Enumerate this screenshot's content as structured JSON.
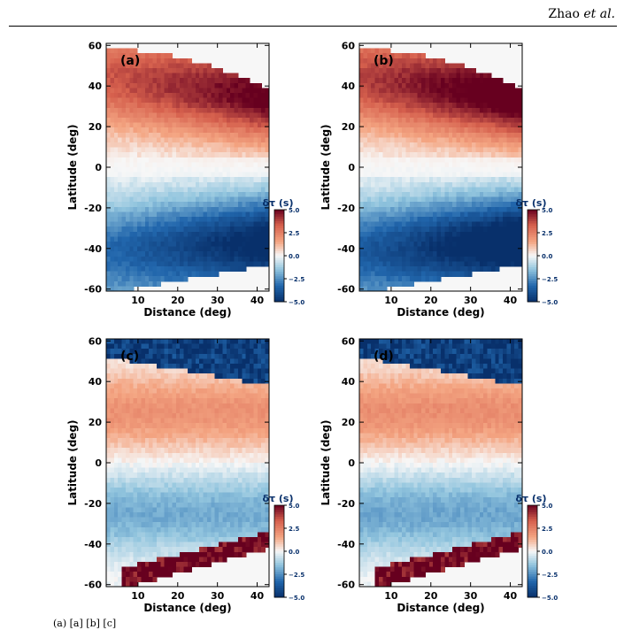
{
  "header": {
    "author": "Zhao",
    "etal": "et al."
  },
  "caption_fragment": "(a)                                  [a]  [b]                            [c]",
  "colors": {
    "dark_blue": "#08306b",
    "mid_blue": "#2166ac",
    "light_blue": "#92c5de",
    "white": "#f7f7f7",
    "light_red": "#f4a582",
    "mid_red": "#d6604d",
    "dark_red": "#67001f"
  },
  "panels": [
    {
      "label": "(a)",
      "xlabel": "Distance (deg)",
      "ylabel": "Latitude (deg)",
      "variant": "a"
    },
    {
      "label": "(b)",
      "xlabel": "Distance (deg)",
      "ylabel": "Latitude (deg)",
      "variant": "b"
    },
    {
      "label": "(c)",
      "xlabel": "Distance (deg)",
      "ylabel": "Latitude (deg)",
      "variant": "c"
    },
    {
      "label": "(d)",
      "xlabel": "Distance (deg)",
      "ylabel": "Latitude (deg)",
      "variant": "d"
    }
  ],
  "colorbar": {
    "title": "δτ (s)",
    "ticks": [
      "5.0",
      "2.5",
      "0.0",
      "−2.5",
      "−5.0"
    ]
  },
  "chart_data": [
    {
      "type": "heatmap",
      "xlabel": "Distance (deg)",
      "ylabel": "Latitude (deg)",
      "xlim": [
        2,
        43
      ],
      "ylim": [
        -60,
        60
      ],
      "x_ticks": [
        "10",
        "20",
        "30",
        "40"
      ],
      "y_ticks": [
        "60",
        "40",
        "20",
        "0",
        "-20",
        "-40",
        "-60"
      ],
      "colorbar_range": [
        -5,
        5
      ],
      "pattern": "positive anomalies at northern latitudes, negative at southern latitudes, increasing with distance"
    },
    {
      "type": "heatmap",
      "xlabel": "Distance (deg)",
      "ylabel": "Latitude (deg)",
      "xlim": [
        2,
        43
      ],
      "ylim": [
        -60,
        60
      ],
      "x_ticks": [
        "10",
        "20",
        "30",
        "40"
      ],
      "y_ticks": [
        "60",
        "40",
        "20",
        "0",
        "-20",
        "-40",
        "-60"
      ],
      "colorbar_range": [
        -5,
        5
      ],
      "pattern": "similar to (a) with slightly stronger anomalies"
    },
    {
      "type": "heatmap",
      "xlabel": "Distance (deg)",
      "ylabel": "Latitude (deg)",
      "xlim": [
        2,
        43
      ],
      "ylim": [
        -60,
        60
      ],
      "x_ticks": [
        "10",
        "20",
        "30",
        "40"
      ],
      "y_ticks": [
        "60",
        "40",
        "20",
        "0",
        "-20",
        "-40",
        "-60"
      ],
      "colorbar_range": [
        -5,
        5
      ],
      "pattern": "weaker interior anomalies with strong opposite-sign bands near the ±60 deg edges"
    },
    {
      "type": "heatmap",
      "xlabel": "Distance (deg)",
      "ylabel": "Latitude (deg)",
      "xlim": [
        2,
        43
      ],
      "ylim": [
        -60,
        60
      ],
      "x_ticks": [
        "10",
        "20",
        "30",
        "40"
      ],
      "y_ticks": [
        "60",
        "40",
        "20",
        "0",
        "-20",
        "-40",
        "-60"
      ],
      "colorbar_range": [
        -5,
        5
      ],
      "pattern": "similar to (c)"
    }
  ]
}
